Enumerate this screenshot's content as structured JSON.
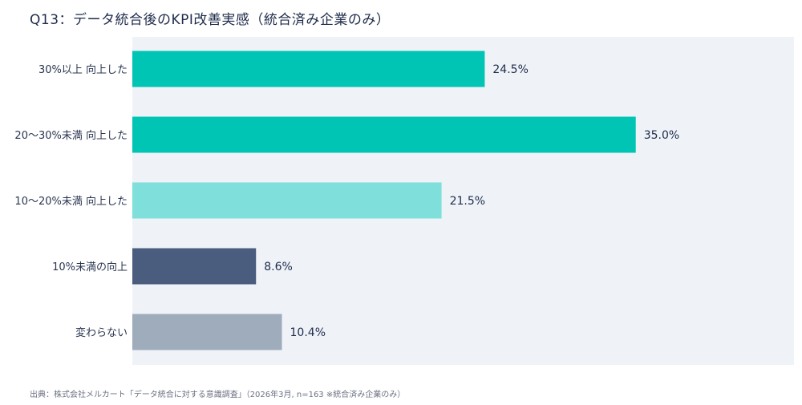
{
  "title": "Q13：データ統合後のKPI改善実感（統合済み企業のみ）",
  "source": "出典：株式会社メルカート「データ統合に対する意識調査」（2026年3月, n=163 ※統合済み企業のみ）",
  "chart_data": {
    "type": "bar",
    "orientation": "horizontal",
    "categories": [
      "30%以上 向上した",
      "20〜30%未満 向上した",
      "10〜20%未満 向上した",
      "10%未満の向上",
      "変わらない"
    ],
    "values": [
      24.5,
      35.0,
      21.5,
      8.6,
      10.4
    ],
    "value_labels": [
      "24.5%",
      "35.0%",
      "21.5%",
      "8.6%",
      "10.4%"
    ],
    "colors": [
      "#00c4b4",
      "#00c4b4",
      "#7fdfda",
      "#4a5d7e",
      "#9eacbb"
    ],
    "xlim": [
      0,
      46
    ],
    "background": "#eff3f8",
    "grid": false
  }
}
